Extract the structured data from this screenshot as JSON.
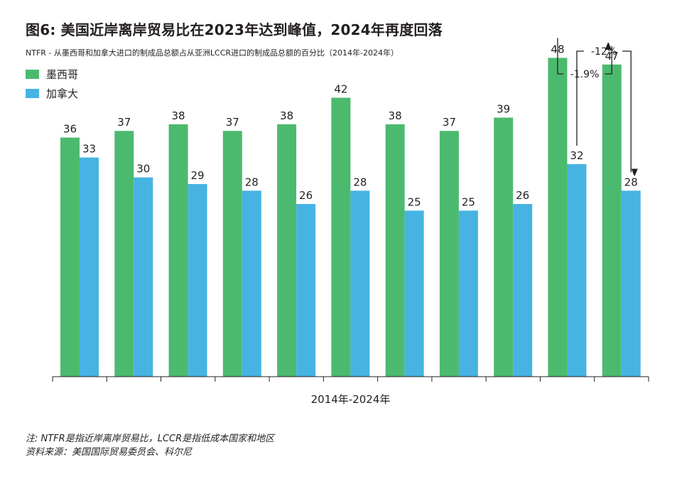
{
  "title": "图6: 美国近岸离岸贸易比在2023年达到峰值，2024年再度回落",
  "subtitle": "NTFR - 从墨西哥和加拿大进口的制成品总额占从亚洲LCCR进口的制成品总额的百分比（2014年-2024年）",
  "colors": {
    "mexico": "#4cba6e",
    "canada": "#47b3e2",
    "text": "#231f20"
  },
  "chart_data": {
    "type": "bar",
    "categories": [
      "",
      "",
      "",
      "",
      "",
      "",
      "",
      "",
      "",
      "",
      ""
    ],
    "xlabel": "2014年-2024年",
    "ylim": [
      0,
      55
    ],
    "legend_position": "top-left",
    "series": [
      {
        "name": "墨西哥",
        "values": [
          36,
          37,
          38,
          37,
          38,
          42,
          38,
          37,
          39,
          48,
          47
        ]
      },
      {
        "name": "加拿大",
        "values": [
          33,
          30,
          29,
          28,
          26,
          28,
          25,
          25,
          26,
          32,
          28
        ]
      }
    ],
    "annotations": [
      {
        "label": "-1.9%",
        "from_series": 0,
        "from_index": 9,
        "to_series": 0,
        "to_index": 10
      },
      {
        "label": "-12%",
        "from_series": 1,
        "from_index": 9,
        "to_series": 1,
        "to_index": 10
      }
    ]
  },
  "notes": [
    "注: NTFR是指近岸离岸贸易比，LCCR是指低成本国家和地区",
    "资料来源：美国国际贸易委员会、科尔尼"
  ]
}
